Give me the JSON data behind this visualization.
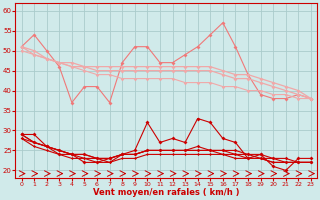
{
  "bg_color": "#d0eaea",
  "grid_color": "#aacccc",
  "xlabel": "Vent moyen/en rafales ( km/h )",
  "xlim": [
    -0.5,
    23.5
  ],
  "ylim": [
    18,
    62
  ],
  "yticks": [
    20,
    25,
    30,
    35,
    40,
    45,
    50,
    55,
    60
  ],
  "xticks": [
    0,
    1,
    2,
    3,
    4,
    5,
    6,
    7,
    8,
    9,
    10,
    11,
    12,
    13,
    14,
    15,
    16,
    17,
    18,
    19,
    20,
    21,
    22,
    23
  ],
  "hours": [
    0,
    1,
    2,
    3,
    4,
    5,
    6,
    7,
    8,
    9,
    10,
    11,
    12,
    13,
    14,
    15,
    16,
    17,
    18,
    19,
    20,
    21,
    22,
    23
  ],
  "line_rafales_spiky": [
    51,
    54,
    50,
    46,
    37,
    41,
    41,
    37,
    47,
    51,
    51,
    47,
    47,
    49,
    51,
    54,
    57,
    51,
    44,
    39,
    38,
    38,
    39,
    38
  ],
  "line_rafales_trend1": [
    51,
    50,
    48,
    47,
    47,
    46,
    46,
    46,
    46,
    46,
    46,
    46,
    46,
    46,
    46,
    46,
    45,
    44,
    44,
    43,
    42,
    41,
    40,
    38
  ],
  "line_rafales_trend2": [
    51,
    49,
    48,
    47,
    46,
    46,
    45,
    45,
    45,
    45,
    45,
    45,
    45,
    45,
    45,
    45,
    44,
    43,
    43,
    42,
    41,
    40,
    39,
    38
  ],
  "line_rafales_trend3": [
    50,
    49,
    48,
    47,
    46,
    45,
    44,
    44,
    43,
    43,
    43,
    43,
    43,
    42,
    42,
    42,
    41,
    41,
    40,
    40,
    39,
    39,
    38,
    38
  ],
  "line_vent_spiky": [
    29,
    29,
    26,
    24,
    24,
    22,
    22,
    23,
    24,
    25,
    32,
    27,
    28,
    27,
    33,
    32,
    28,
    27,
    23,
    24,
    21,
    20,
    23,
    23
  ],
  "line_vent_trend1": [
    29,
    27,
    26,
    25,
    24,
    24,
    23,
    23,
    24,
    24,
    25,
    25,
    25,
    25,
    26,
    25,
    25,
    25,
    24,
    24,
    23,
    23,
    22,
    22
  ],
  "line_vent_trend2": [
    29,
    27,
    26,
    25,
    24,
    24,
    23,
    23,
    24,
    24,
    25,
    25,
    25,
    25,
    25,
    25,
    25,
    24,
    24,
    23,
    23,
    22,
    22,
    22
  ],
  "line_vent_trend3": [
    28,
    27,
    26,
    25,
    24,
    23,
    23,
    22,
    24,
    24,
    25,
    25,
    25,
    25,
    25,
    25,
    24,
    24,
    23,
    23,
    22,
    22,
    22,
    22
  ],
  "line_vent_trend4": [
    28,
    26,
    25,
    24,
    23,
    23,
    22,
    22,
    23,
    23,
    24,
    24,
    24,
    24,
    24,
    24,
    24,
    23,
    23,
    23,
    22,
    22,
    22,
    22
  ],
  "color_pink_bright": "#f07878",
  "color_pink_light": "#f0a8a8",
  "color_red_dark": "#cc0000",
  "color_axis": "#cc0000"
}
